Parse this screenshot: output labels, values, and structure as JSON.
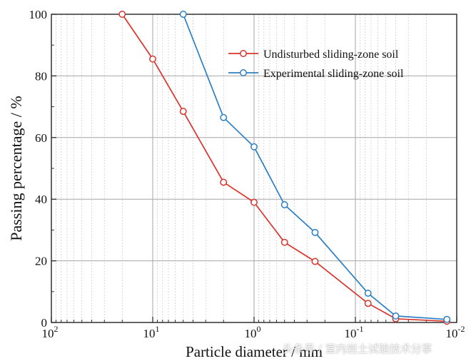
{
  "chart_data": {
    "type": "line",
    "title": "",
    "xlabel": "Particle diameter / mm",
    "ylabel": "Passing percentage / %",
    "x_scale": "log",
    "x_reversed": true,
    "xlim": [
      100,
      0.01
    ],
    "ylim": [
      0,
      100
    ],
    "grid": true,
    "legend_position": "top-right",
    "x_ticks": [
      {
        "value": 100,
        "base": "10",
        "exp": "2"
      },
      {
        "value": 10,
        "base": "10",
        "exp": "1"
      },
      {
        "value": 1,
        "base": "10",
        "exp": "0"
      },
      {
        "value": 0.1,
        "base": "10",
        "exp": "-1"
      },
      {
        "value": 0.01,
        "base": "10",
        "exp": "-2"
      }
    ],
    "y_ticks": [
      {
        "value": 0,
        "label": "0"
      },
      {
        "value": 20,
        "label": "20"
      },
      {
        "value": 40,
        "label": "40"
      },
      {
        "value": 60,
        "label": "60"
      },
      {
        "value": 80,
        "label": "80"
      },
      {
        "value": 100,
        "label": "100"
      }
    ],
    "series": [
      {
        "name": "Undisturbed sliding-zone soil",
        "color": "#d9342b",
        "marker": "open-circle",
        "x": [
          20,
          10,
          5,
          2,
          1,
          0.5,
          0.25,
          0.075,
          0.04,
          0.0125
        ],
        "y": [
          100,
          85.5,
          68.5,
          45.5,
          39,
          26,
          19.8,
          6.2,
          1.2,
          0.4
        ]
      },
      {
        "name": "Experimental sliding-zone soil",
        "color": "#2c7fc4",
        "marker": "open-circle",
        "x": [
          5,
          2,
          1,
          0.5,
          0.25,
          0.075,
          0.04,
          0.0125
        ],
        "y": [
          100,
          66.5,
          57,
          38.2,
          29.2,
          9.5,
          2.1,
          1.0
        ]
      }
    ]
  },
  "watermark": "头条号 / 室内岩土试验技术分享"
}
